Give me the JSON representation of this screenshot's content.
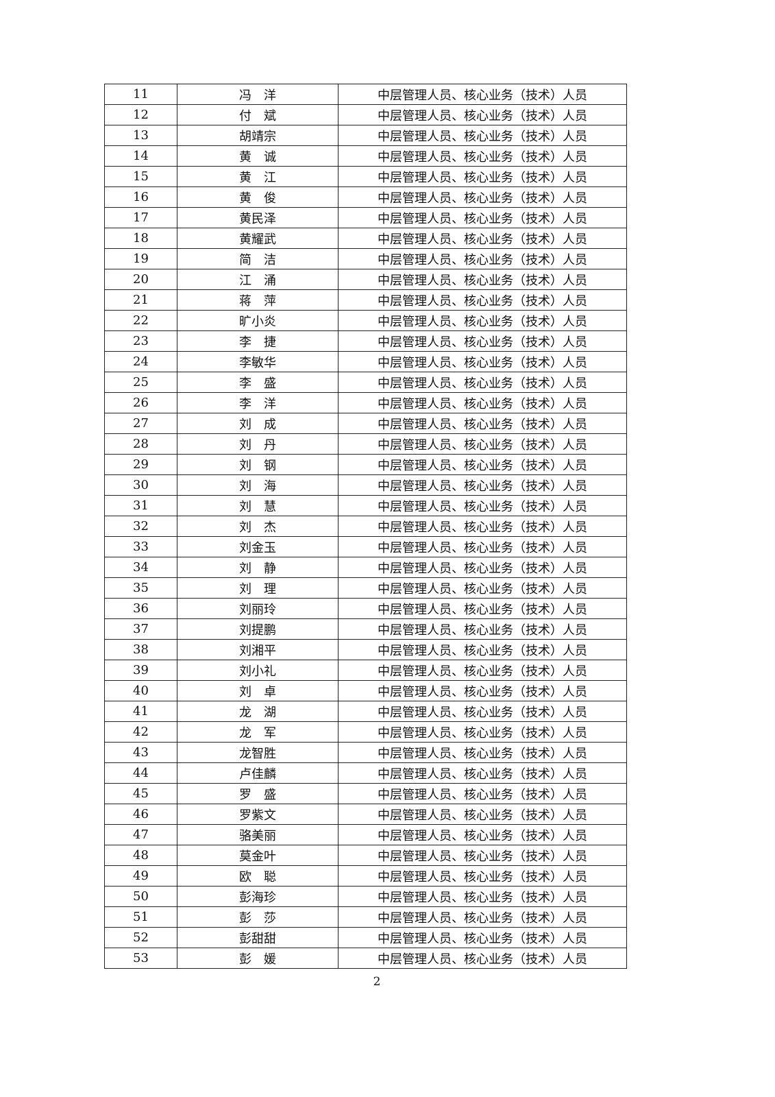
{
  "table": {
    "rows": [
      [
        "11",
        "冯　洋",
        "中层管理人员、核心业务（技术）人员"
      ],
      [
        "12",
        "付　斌",
        "中层管理人员、核心业务（技术）人员"
      ],
      [
        "13",
        "胡靖宗",
        "中层管理人员、核心业务（技术）人员"
      ],
      [
        "14",
        "黄　诚",
        "中层管理人员、核心业务（技术）人员"
      ],
      [
        "15",
        "黄　江",
        "中层管理人员、核心业务（技术）人员"
      ],
      [
        "16",
        "黄　俊",
        "中层管理人员、核心业务（技术）人员"
      ],
      [
        "17",
        "黄民泽",
        "中层管理人员、核心业务（技术）人员"
      ],
      [
        "18",
        "黄耀武",
        "中层管理人员、核心业务（技术）人员"
      ],
      [
        "19",
        "简　洁",
        "中层管理人员、核心业务（技术）人员"
      ],
      [
        "20",
        "江　涌",
        "中层管理人员、核心业务（技术）人员"
      ],
      [
        "21",
        "蒋　萍",
        "中层管理人员、核心业务（技术）人员"
      ],
      [
        "22",
        "旷小炎",
        "中层管理人员、核心业务（技术）人员"
      ],
      [
        "23",
        "李　捷",
        "中层管理人员、核心业务（技术）人员"
      ],
      [
        "24",
        "李敏华",
        "中层管理人员、核心业务（技术）人员"
      ],
      [
        "25",
        "李　盛",
        "中层管理人员、核心业务（技术）人员"
      ],
      [
        "26",
        "李　洋",
        "中层管理人员、核心业务（技术）人员"
      ],
      [
        "27",
        "刘　成",
        "中层管理人员、核心业务（技术）人员"
      ],
      [
        "28",
        "刘　丹",
        "中层管理人员、核心业务（技术）人员"
      ],
      [
        "29",
        "刘　钢",
        "中层管理人员、核心业务（技术）人员"
      ],
      [
        "30",
        "刘　海",
        "中层管理人员、核心业务（技术）人员"
      ],
      [
        "31",
        "刘　慧",
        "中层管理人员、核心业务（技术）人员"
      ],
      [
        "32",
        "刘　杰",
        "中层管理人员、核心业务（技术）人员"
      ],
      [
        "33",
        "刘金玉",
        "中层管理人员、核心业务（技术）人员"
      ],
      [
        "34",
        "刘　静",
        "中层管理人员、核心业务（技术）人员"
      ],
      [
        "35",
        "刘　理",
        "中层管理人员、核心业务（技术）人员"
      ],
      [
        "36",
        "刘丽玲",
        "中层管理人员、核心业务（技术）人员"
      ],
      [
        "37",
        "刘提鹏",
        "中层管理人员、核心业务（技术）人员"
      ],
      [
        "38",
        "刘湘平",
        "中层管理人员、核心业务（技术）人员"
      ],
      [
        "39",
        "刘小礼",
        "中层管理人员、核心业务（技术）人员"
      ],
      [
        "40",
        "刘　卓",
        "中层管理人员、核心业务（技术）人员"
      ],
      [
        "41",
        "龙　湖",
        "中层管理人员、核心业务（技术）人员"
      ],
      [
        "42",
        "龙　军",
        "中层管理人员、核心业务（技术）人员"
      ],
      [
        "43",
        "龙智胜",
        "中层管理人员、核心业务（技术）人员"
      ],
      [
        "44",
        "卢佳麟",
        "中层管理人员、核心业务（技术）人员"
      ],
      [
        "45",
        "罗　盛",
        "中层管理人员、核心业务（技术）人员"
      ],
      [
        "46",
        "罗紫文",
        "中层管理人员、核心业务（技术）人员"
      ],
      [
        "47",
        "骆美丽",
        "中层管理人员、核心业务（技术）人员"
      ],
      [
        "48",
        "莫金叶",
        "中层管理人员、核心业务（技术）人员"
      ],
      [
        "49",
        "欧　聪",
        "中层管理人员、核心业务（技术）人员"
      ],
      [
        "50",
        "彭海珍",
        "中层管理人员、核心业务（技术）人员"
      ],
      [
        "51",
        "彭　莎",
        "中层管理人员、核心业务（技术）人员"
      ],
      [
        "52",
        "彭甜甜",
        "中层管理人员、核心业务（技术）人员"
      ],
      [
        "53",
        "彭　媛",
        "中层管理人员、核心业务（技术）人员"
      ]
    ]
  },
  "footer": {
    "page_number": "2"
  }
}
